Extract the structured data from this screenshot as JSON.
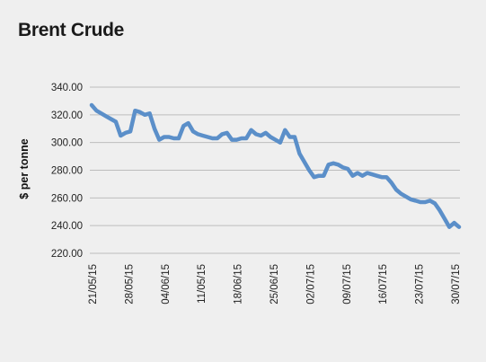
{
  "chart_data": {
    "type": "line",
    "title": "Brent Crude",
    "xlabel": "",
    "ylabel": "$ per tonne",
    "ylim": [
      220,
      340
    ],
    "yticks": [
      "340.00",
      "320.00",
      "300.00",
      "280.00",
      "260.00",
      "240.00",
      "220.00"
    ],
    "ytick_values": [
      340,
      320,
      300,
      280,
      260,
      240,
      220
    ],
    "xticks": [
      "21/05/15",
      "28/05/15",
      "04/06/15",
      "11/05/15",
      "18/06/15",
      "25/06/15",
      "02/07/15",
      "09/07/15",
      "16/07/15",
      "23/07/15",
      "30/07/15"
    ],
    "grid": true,
    "line_color": "#5b8fc9",
    "series": [
      {
        "values": [
          327,
          323,
          321,
          319,
          317,
          315,
          305,
          307,
          308,
          323,
          322,
          320,
          321,
          310,
          302,
          304,
          304,
          303,
          303,
          312,
          314,
          308,
          306,
          305,
          304,
          303,
          303,
          306,
          307,
          302,
          302,
          303,
          303,
          309,
          306,
          305,
          307,
          304,
          302,
          300,
          309,
          304,
          304,
          292,
          286,
          280,
          275,
          276,
          276,
          284,
          285,
          284,
          282,
          281,
          276,
          278,
          276,
          278,
          277,
          276,
          275,
          275,
          271,
          266,
          263,
          261,
          259,
          258,
          257,
          257,
          258,
          256,
          251,
          245,
          239,
          242,
          239
        ]
      }
    ]
  }
}
